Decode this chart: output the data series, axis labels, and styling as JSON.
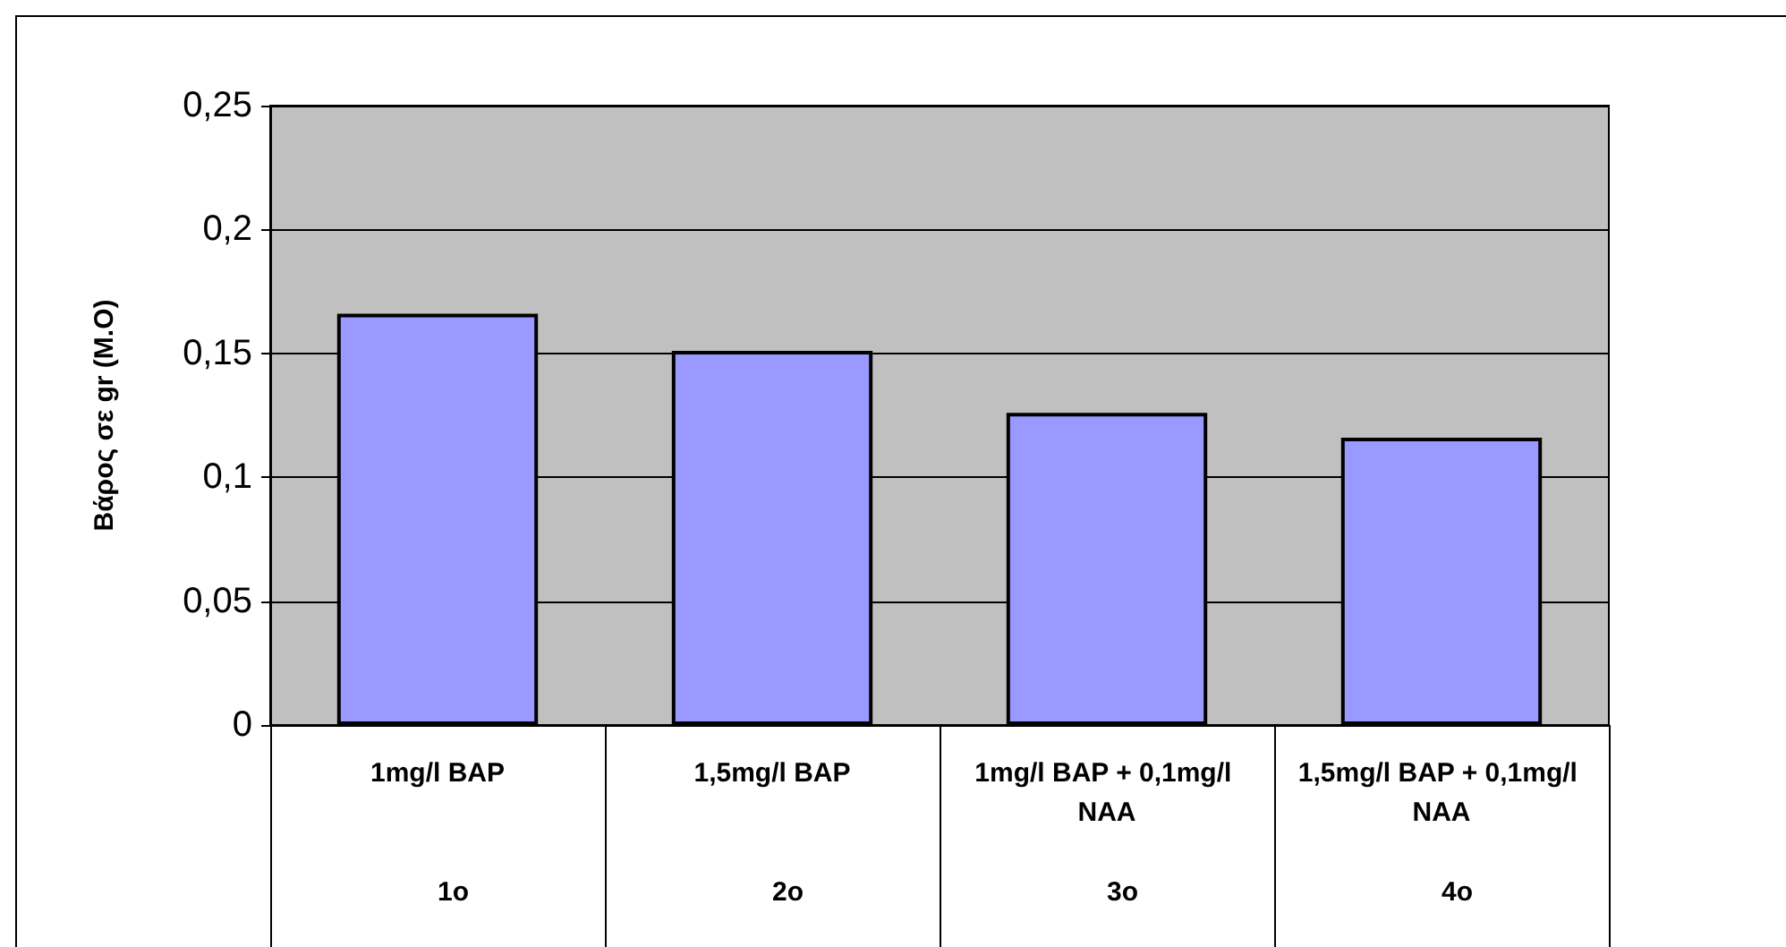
{
  "chart_data": {
    "type": "bar",
    "ylabel": "Βάρος σε gr (M.O)",
    "categories": [
      "1mg/l BAP",
      "1,5mg/l BAP",
      "1mg/l BAP + 0,1mg/l NAA",
      "1,5mg/l BAP + 0,1mg/l NAA"
    ],
    "values": [
      0.166,
      0.151,
      0.126,
      0.116
    ],
    "color": "#9999ff",
    "ylim": [
      0,
      0.25
    ],
    "yticks": [
      0,
      {
        "value": 0.05,
        "label": "0,05"
      },
      {
        "value": 0.1,
        "label": "0,1"
      },
      {
        "value": 0.15,
        "label": "0,15"
      },
      {
        "value": 0.2,
        "label": "0,2"
      },
      {
        "value": 0.25,
        "label": "0,25"
      }
    ],
    "grid": "y",
    "annotations": [
      "1o",
      "2o",
      "3o",
      "4o"
    ]
  }
}
